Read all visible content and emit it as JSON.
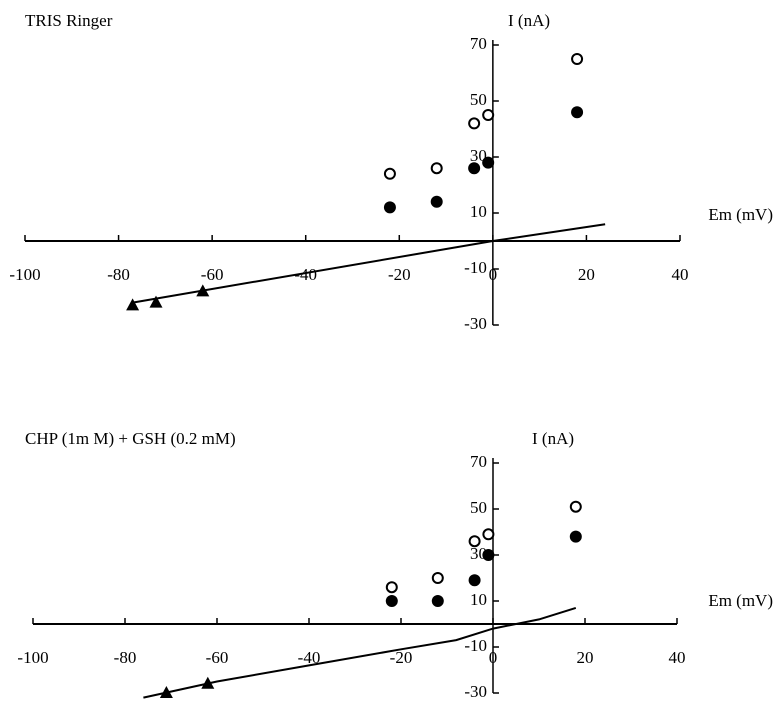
{
  "chart_data": [
    {
      "type": "scatter",
      "title": "TRIS Ringer",
      "x_label": "Em (mV)",
      "y_label": "I (nA)",
      "xlim": [
        -100,
        40
      ],
      "ylim": [
        -30,
        70
      ],
      "xticks": [
        -100,
        -80,
        -60,
        -40,
        -20,
        0,
        20,
        40
      ],
      "yticks": [
        -30,
        -10,
        10,
        30,
        50,
        70
      ],
      "series": [
        {
          "style": "open-circle",
          "color": "#000000",
          "x": [
            -22,
            -12,
            -4,
            -1,
            18
          ],
          "values": [
            24,
            26,
            42,
            45,
            65
          ]
        },
        {
          "style": "filled-circle",
          "color": "#000000",
          "x": [
            -22,
            -12,
            -4,
            -1,
            18
          ],
          "values": [
            12,
            14,
            26,
            28,
            46
          ]
        },
        {
          "style": "triangle",
          "color": "#000000",
          "x": [
            -77,
            -72,
            -62
          ],
          "values": [
            -23,
            -22,
            -18
          ]
        },
        {
          "style": "line",
          "color": "#000000",
          "x": [
            -77,
            0,
            24
          ],
          "values": [
            -22,
            0,
            6
          ]
        }
      ]
    },
    {
      "type": "scatter",
      "title": "CHP (1m M) + GSH (0.2 mM)",
      "x_label": "Em (mV)",
      "y_label": "I (nA)",
      "xlim": [
        -100,
        40
      ],
      "ylim": [
        -30,
        70
      ],
      "xticks": [
        -100,
        -80,
        -60,
        -40,
        -20,
        0,
        20,
        40
      ],
      "yticks": [
        -30,
        -10,
        10,
        30,
        50,
        70
      ],
      "series": [
        {
          "style": "open-circle",
          "color": "#000000",
          "x": [
            -22,
            -12,
            -4,
            -1,
            18
          ],
          "values": [
            16,
            20,
            36,
            39,
            51
          ]
        },
        {
          "style": "filled-circle",
          "color": "#000000",
          "x": [
            -22,
            -12,
            -4,
            -1,
            18
          ],
          "values": [
            10,
            10,
            19,
            30,
            38
          ]
        },
        {
          "style": "triangle",
          "color": "#000000",
          "x": [
            -71,
            -62
          ],
          "values": [
            -30,
            -26
          ]
        },
        {
          "style": "line",
          "color": "#000000",
          "x": [
            -76,
            -60,
            -40,
            -20,
            -8,
            0,
            10,
            18
          ],
          "values": [
            -32,
            -25,
            -18,
            -11,
            -7,
            -2,
            2,
            7
          ]
        }
      ]
    }
  ]
}
